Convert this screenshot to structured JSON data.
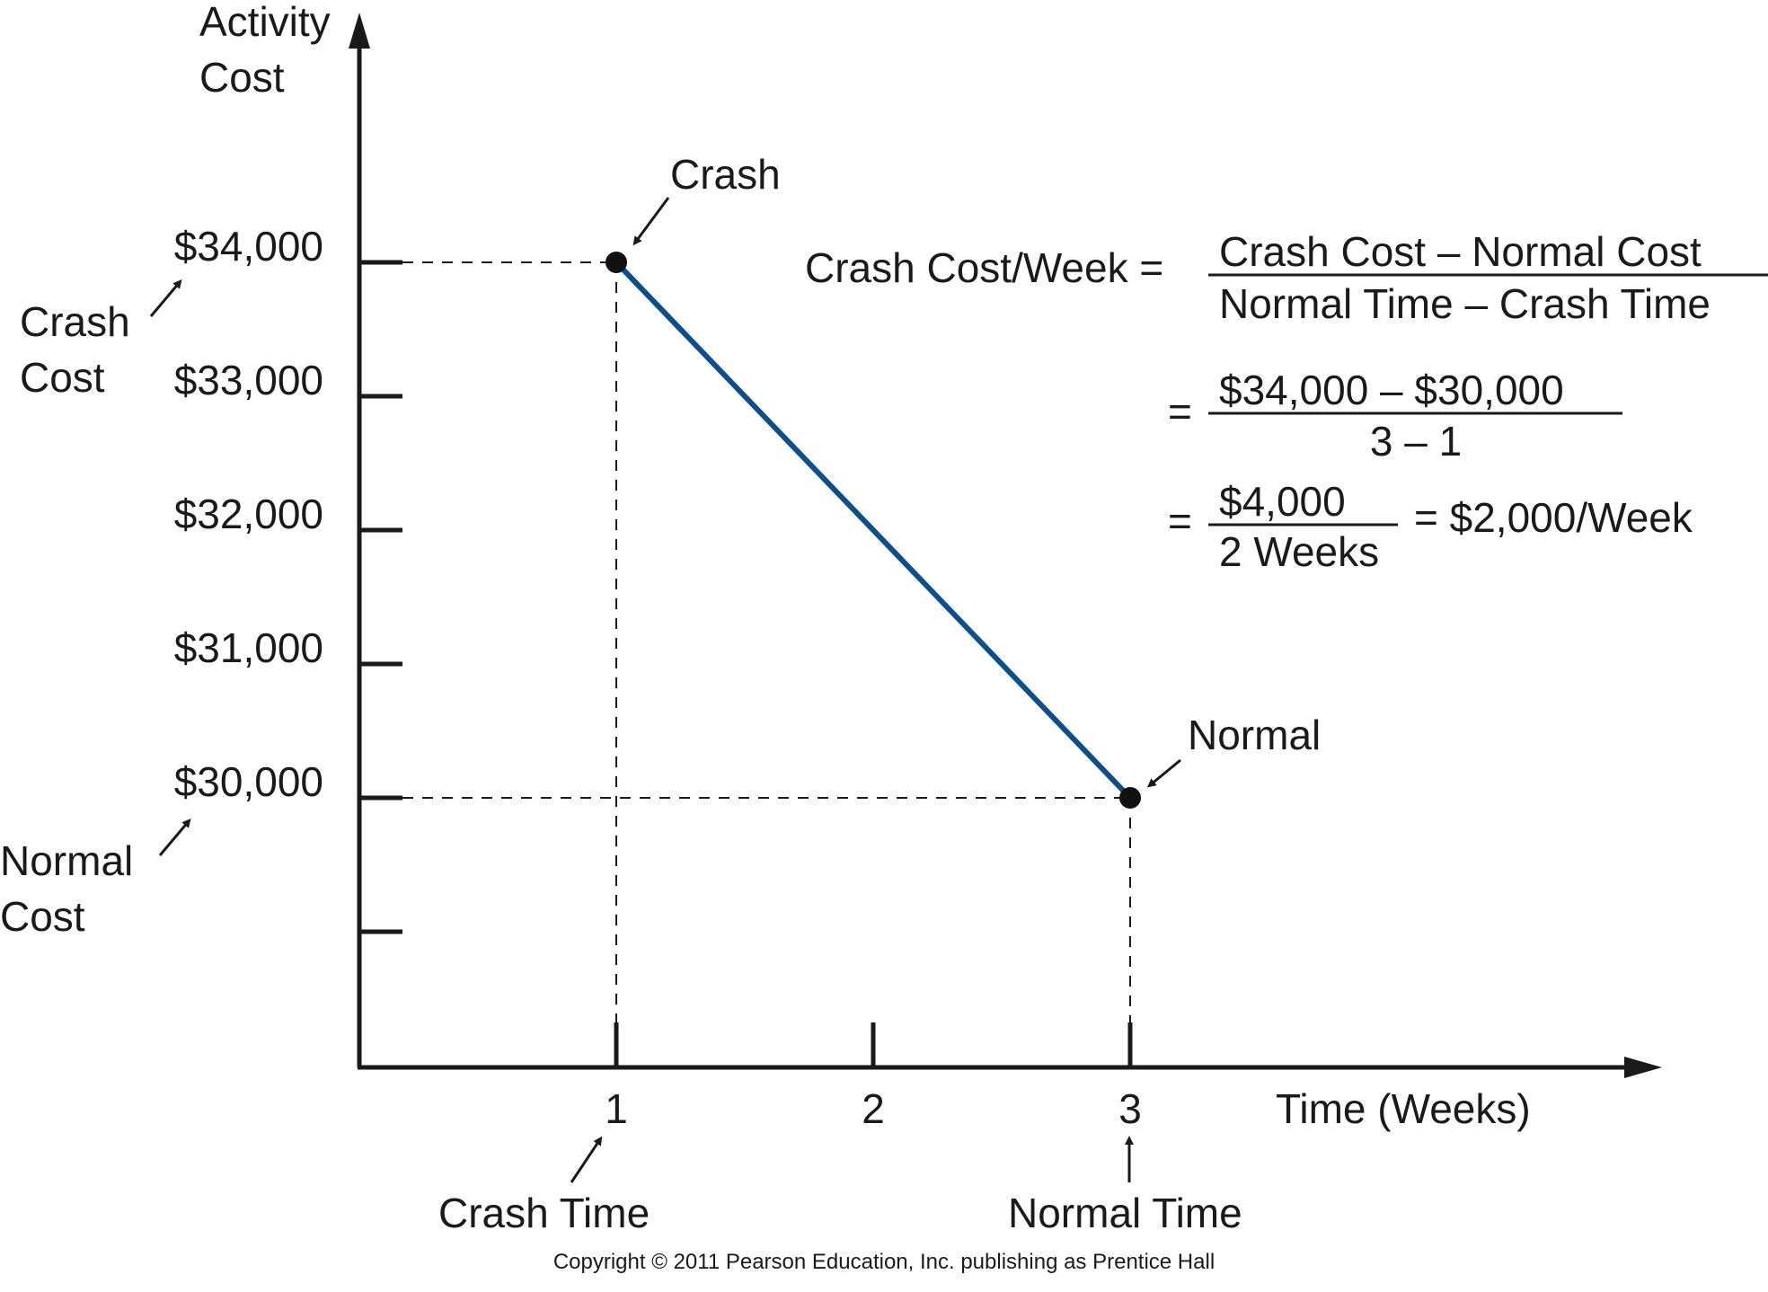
{
  "chart_data": {
    "type": "line",
    "ylabel_lines": [
      "Activity",
      "Cost"
    ],
    "xlabel": "Time (Weeks)",
    "x_ticks": [
      "1",
      "2",
      "3"
    ],
    "y_ticks": [
      "$34,000",
      "$33,000",
      "$32,000",
      "$31,000",
      "$30,000"
    ],
    "y_unlabeled_tick": 29000,
    "ylim": [
      28000,
      34000
    ],
    "xlim": [
      0,
      4
    ],
    "series": [
      {
        "values": [
          {
            "x": 1,
            "y": 34000
          },
          {
            "x": 3,
            "y": 30000
          }
        ],
        "color": "#0d4f8e"
      }
    ],
    "points": [
      {
        "label": "Crash",
        "x": 1,
        "y": 34000
      },
      {
        "label": "Normal",
        "x": 3,
        "y": 30000
      }
    ],
    "annotations": {
      "crash_cost_lines": [
        "Crash",
        "Cost"
      ],
      "normal_cost_lines": [
        "Normal",
        "Cost"
      ],
      "crash_time": "Crash Time",
      "normal_time": "Normal Time"
    },
    "formula": {
      "lhs": "Crash Cost/Week =",
      "num1": "Crash Cost – Normal Cost",
      "den1": "Normal Time – Crash Time",
      "eq": "=",
      "num2": "$34,000 – $30,000",
      "den2": "3 – 1",
      "num3": "$4,000",
      "den3": "2 Weeks",
      "result": "= $2,000/Week"
    },
    "grid": false
  },
  "copyright": "Copyright © 2011 Pearson Education, Inc. publishing as Prentice Hall"
}
